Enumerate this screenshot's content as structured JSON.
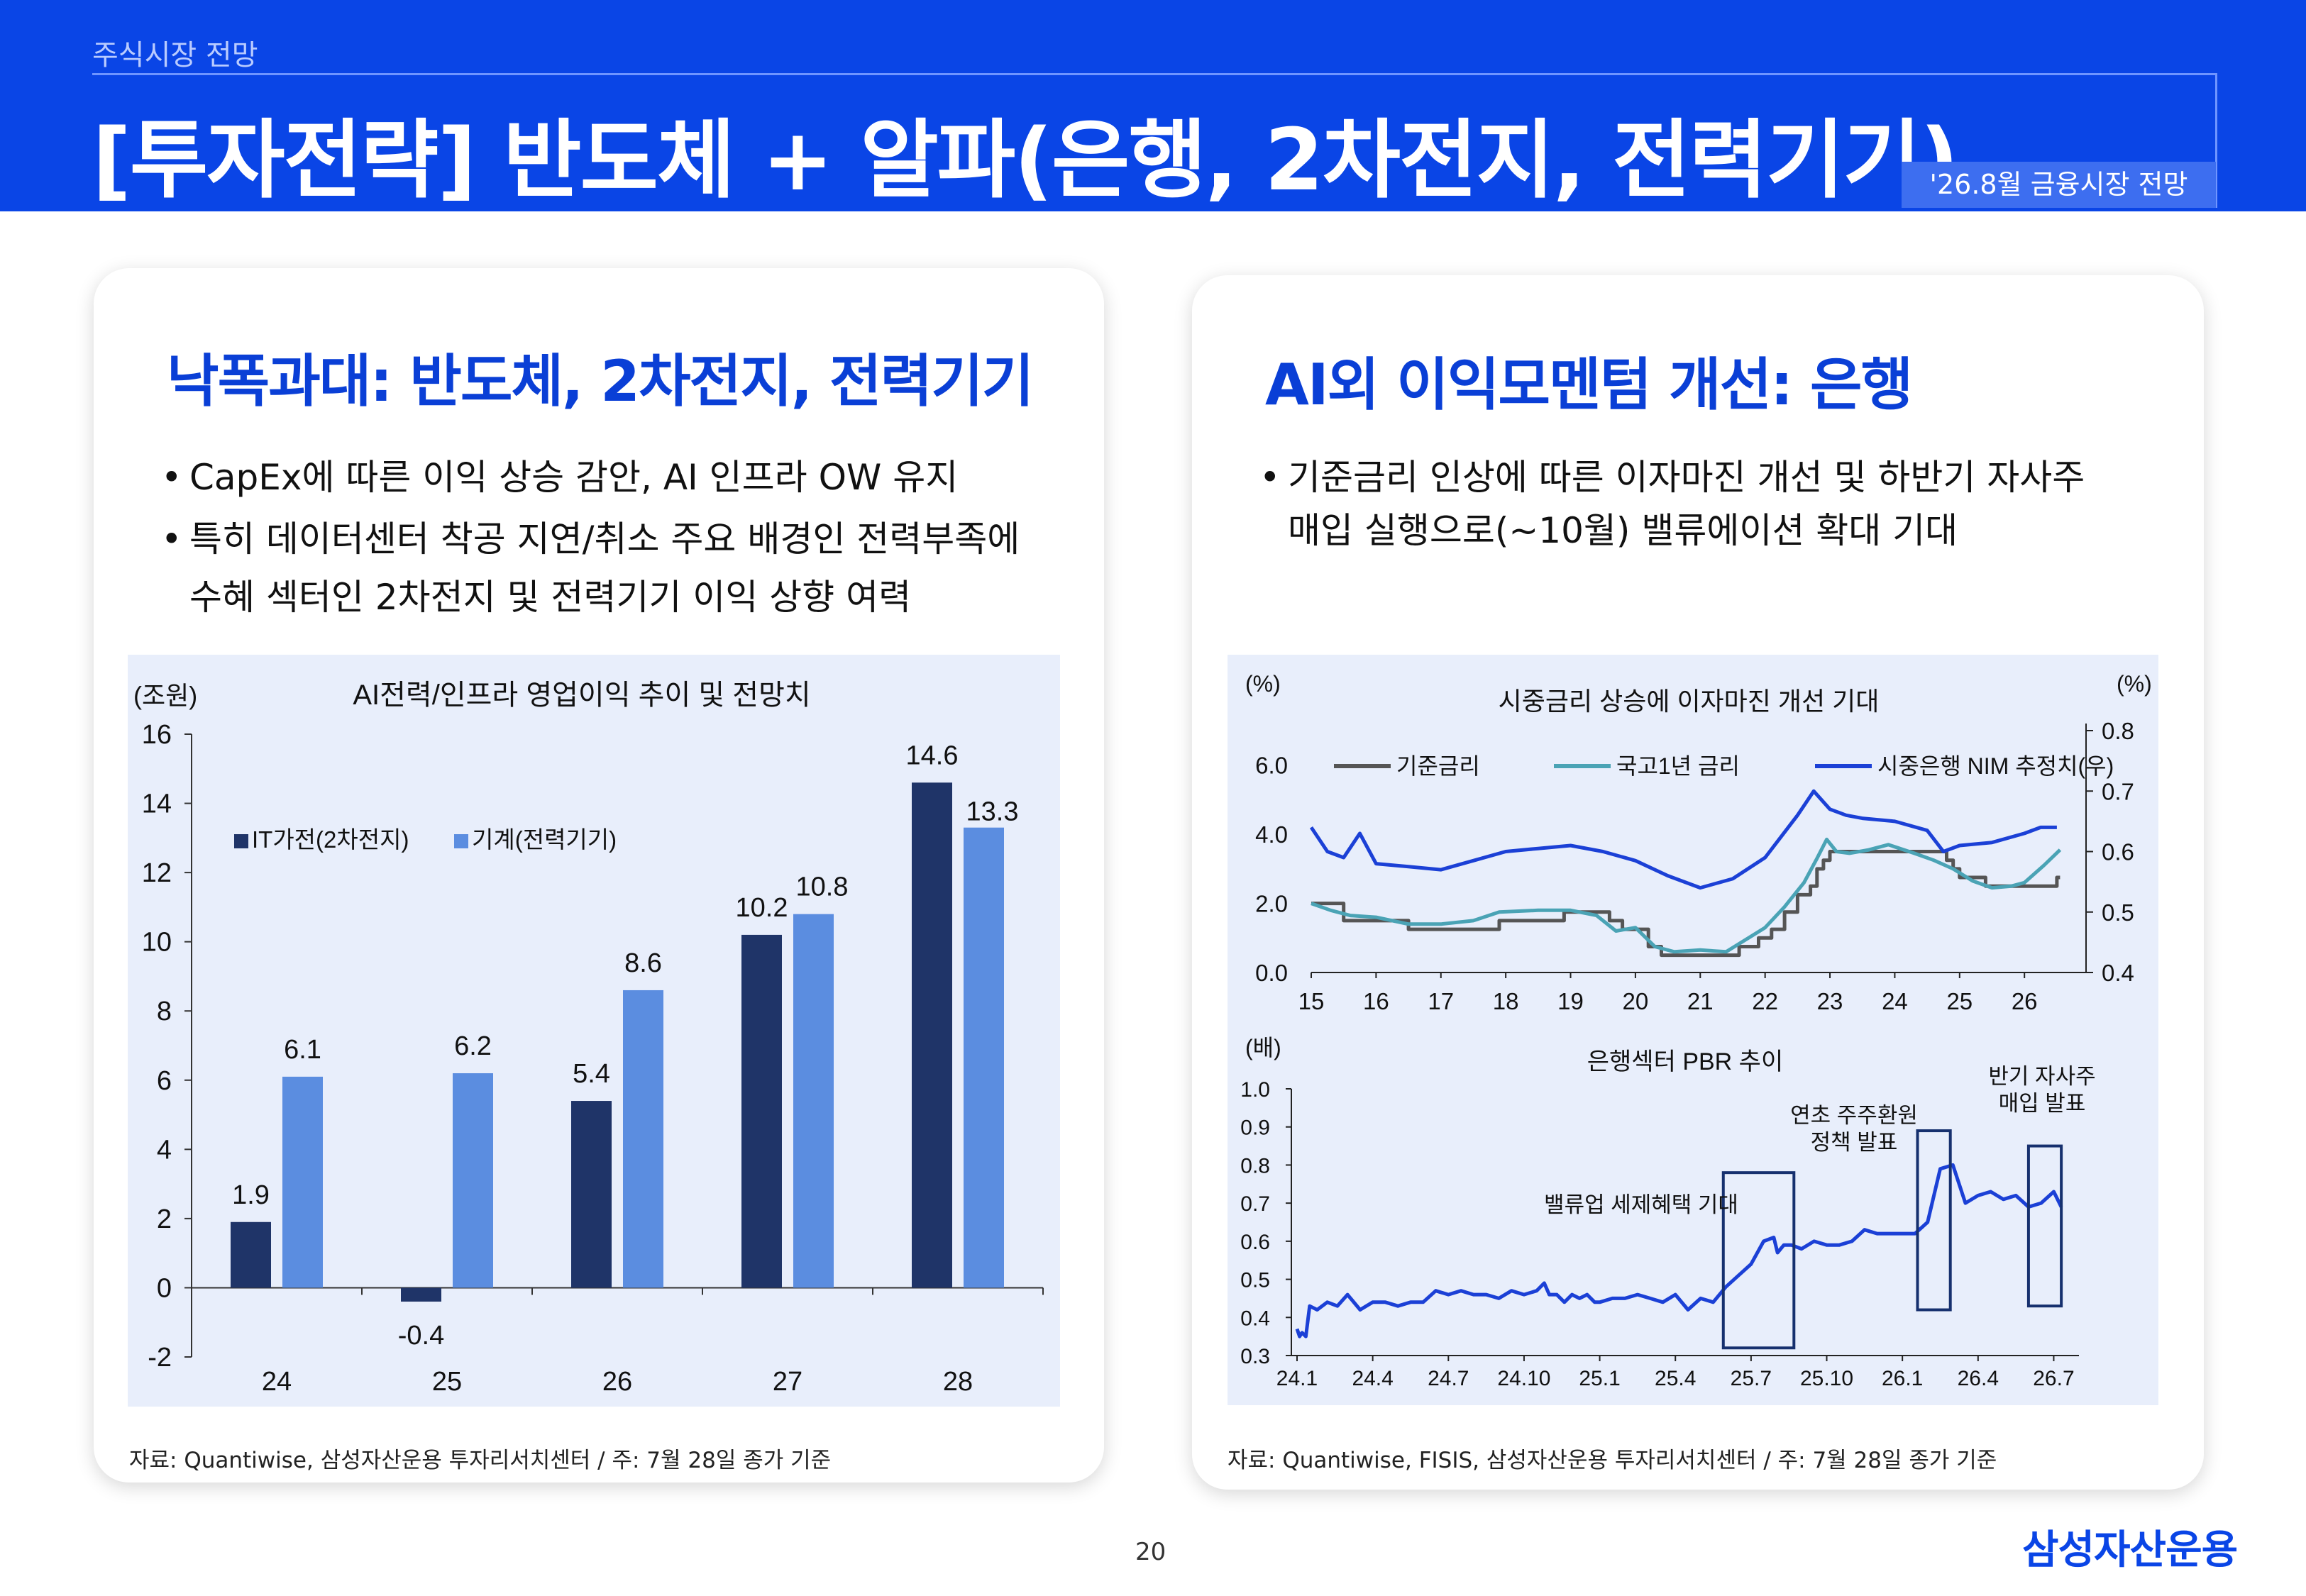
{
  "header": {
    "subtitle": "주식시장 전망",
    "title": "[투자전략] 반도체 + 알파(은행, 2차전지, 전력기기)",
    "badge": "'26.8월 금융시장 전망"
  },
  "left_panel": {
    "heading": "낙폭과대: 반도체, 2차전지, 전력기기",
    "bullets": [
      "CapEx에 따른 이익 상승 감안, AI 인프라 OW 유지",
      "특히 데이터센터 착공 지연/취소 주요 배경인 전력부족에",
      "수혜 섹터인 2차전지 및 전력기기 이익 상향 여력"
    ],
    "source": "자료: Quantiwise, 삼성자산운용 투자리서치센터 / 주: 7월 28일 종가 기준"
  },
  "right_panel": {
    "heading": "AI외 이익모멘텀 개선: 은행",
    "bullets": [
      "기준금리 인상에 따른 이자마진 개선 및 하반기 자사주",
      "매입 실행으로(~10월) 밸류에이션 확대 기대"
    ],
    "source": "자료: Quantiwise, FISIS, 삼성자산운용 투자리서치센터 /  주: 7월 28일  종가 기준"
  },
  "footer": {
    "page_number": "20",
    "brand": "삼성자산운용"
  },
  "colors": {
    "brand_blue": "#0a45e6",
    "navy_bar": "#1f3468",
    "light_bar": "#5b8de0",
    "gray_line": "#555555",
    "teal_line": "#4aa3b5",
    "blue_line": "#1b40d6"
  },
  "chart_data": [
    {
      "type": "bar",
      "title": "AI전력/인프라 영업이익 추이 및 전망치",
      "ylabel": "(조원)",
      "categories": [
        "24",
        "25",
        "26",
        "27",
        "28"
      ],
      "series": [
        {
          "name": "IT가전(2차전지)",
          "values": [
            1.9,
            -0.4,
            5.4,
            10.2,
            14.6
          ]
        },
        {
          "name": "기계(전력기기)",
          "values": [
            6.1,
            6.2,
            8.6,
            10.8,
            13.3
          ]
        }
      ],
      "ylim": [
        -2,
        16
      ],
      "yticks": [
        -2,
        0,
        2,
        4,
        6,
        8,
        10,
        12,
        14,
        16
      ],
      "legend": "top-left"
    },
    {
      "type": "line",
      "title": "시중금리 상승에 이자마진 개선 기대",
      "ylabel_left": "(%)",
      "ylabel_right": "(%)",
      "x_ticks": [
        "15",
        "16",
        "17",
        "18",
        "19",
        "20",
        "21",
        "22",
        "23",
        "24",
        "25",
        "26"
      ],
      "ylim_left": [
        0,
        7
      ],
      "yticks_left": [
        "0.0",
        "2.0",
        "4.0",
        "6.0"
      ],
      "ylim_right": [
        0.4,
        0.8
      ],
      "yticks_right": [
        "0.4",
        "0.5",
        "0.6",
        "0.7",
        "0.8"
      ],
      "legend": "top",
      "series": [
        {
          "name": "기준금리",
          "axis": "left",
          "x": [
            2015.0,
            2015.5,
            2016.5,
            2017.9,
            2018.9,
            2019.6,
            2019.8,
            2020.2,
            2020.4,
            2021.6,
            2021.9,
            2022.1,
            2022.3,
            2022.5,
            2022.7,
            2022.8,
            2022.9,
            2023.0,
            2024.8,
            2024.9,
            2025.0,
            2025.4,
            2026.5
          ],
          "y": [
            2.0,
            1.5,
            1.25,
            1.5,
            1.75,
            1.5,
            1.25,
            0.75,
            0.5,
            0.75,
            1.0,
            1.25,
            1.75,
            2.25,
            2.5,
            3.0,
            3.25,
            3.5,
            3.25,
            3.0,
            2.75,
            2.5,
            2.75
          ]
        },
        {
          "name": "국고1년 금리",
          "axis": "left",
          "x": [
            2015.0,
            2015.3,
            2015.6,
            2016.0,
            2016.5,
            2017.0,
            2017.5,
            2017.9,
            2018.5,
            2019.0,
            2019.4,
            2019.7,
            2020.0,
            2020.3,
            2020.6,
            2021.0,
            2021.4,
            2021.7,
            2022.0,
            2022.3,
            2022.6,
            2022.8,
            2022.95,
            2023.1,
            2023.3,
            2023.6,
            2023.9,
            2024.3,
            2024.6,
            2024.9,
            2025.2,
            2025.5,
            2025.8,
            2026.0,
            2026.3,
            2026.55
          ],
          "y": [
            2.0,
            1.8,
            1.65,
            1.6,
            1.4,
            1.4,
            1.5,
            1.75,
            1.8,
            1.8,
            1.65,
            1.2,
            1.3,
            0.75,
            0.6,
            0.65,
            0.6,
            0.95,
            1.3,
            1.9,
            2.6,
            3.3,
            3.85,
            3.5,
            3.45,
            3.55,
            3.7,
            3.45,
            3.25,
            3.0,
            2.65,
            2.45,
            2.5,
            2.6,
            3.1,
            3.55
          ]
        },
        {
          "name": "시중은행 NIM 추정치(우)",
          "axis": "right",
          "x": [
            2015.0,
            2015.25,
            2015.5,
            2015.75,
            2016.0,
            2016.5,
            2017.0,
            2017.5,
            2018.0,
            2018.5,
            2019.0,
            2019.5,
            2020.0,
            2020.5,
            2021.0,
            2021.5,
            2022.0,
            2022.5,
            2022.75,
            2023.0,
            2023.25,
            2023.5,
            2024.0,
            2024.5,
            2024.75,
            2025.0,
            2025.5,
            2026.0,
            2026.25,
            2026.5
          ],
          "y": [
            0.64,
            0.6,
            0.59,
            0.63,
            0.58,
            0.575,
            0.57,
            0.585,
            0.6,
            0.605,
            0.61,
            0.6,
            0.585,
            0.56,
            0.54,
            0.555,
            0.59,
            0.66,
            0.7,
            0.67,
            0.66,
            0.655,
            0.65,
            0.635,
            0.6,
            0.61,
            0.615,
            0.63,
            0.64,
            0.64
          ]
        }
      ]
    },
    {
      "type": "line",
      "title": "은행섹터 PBR 추이",
      "ylabel": "(배)",
      "x_ticks": [
        "24.1",
        "24.4",
        "24.7",
        "24.10",
        "25.1",
        "25.4",
        "25.7",
        "25.10",
        "26.1",
        "26.4",
        "26.7"
      ],
      "ylim": [
        0.3,
        1.0
      ],
      "yticks": [
        "0.3",
        "0.4",
        "0.5",
        "0.6",
        "0.7",
        "0.8",
        "0.9",
        "1.0"
      ],
      "series": [
        {
          "name": "",
          "x": [
            0,
            0.1,
            0.2,
            0.35,
            0.5,
            0.8,
            1.2,
            1.6,
            2.0,
            2.5,
            3.0,
            3.5,
            4.0,
            4.5,
            5.0,
            5.5,
            6.0,
            6.5,
            7.0,
            7.5,
            8.0,
            8.5,
            9.0,
            9.5,
            9.8,
            10.0,
            10.3,
            10.6,
            10.9,
            11.2,
            11.5,
            11.8,
            12.0,
            12.5,
            13.0,
            13.5,
            14.0,
            14.5,
            15.0,
            15.5,
            16.0,
            16.5,
            17.0,
            17.5,
            18.0,
            18.5,
            18.9,
            19.05,
            19.3,
            19.6,
            20.0,
            20.5,
            21.0,
            21.5,
            22.0,
            22.5,
            23.0,
            23.5,
            24.0,
            24.5,
            25.0,
            25.5,
            26.0,
            26.5,
            27.0,
            27.5,
            28.0,
            28.5,
            29.0,
            29.5,
            30.0,
            30.3
          ],
          "y": [
            0.37,
            0.35,
            0.36,
            0.35,
            0.43,
            0.42,
            0.44,
            0.43,
            0.46,
            0.42,
            0.44,
            0.44,
            0.43,
            0.44,
            0.44,
            0.47,
            0.46,
            0.47,
            0.46,
            0.46,
            0.45,
            0.47,
            0.46,
            0.47,
            0.49,
            0.46,
            0.46,
            0.44,
            0.46,
            0.45,
            0.46,
            0.44,
            0.44,
            0.45,
            0.45,
            0.46,
            0.45,
            0.44,
            0.46,
            0.42,
            0.45,
            0.44,
            0.48,
            0.51,
            0.54,
            0.6,
            0.61,
            0.57,
            0.59,
            0.59,
            0.58,
            0.6,
            0.59,
            0.59,
            0.6,
            0.63,
            0.62,
            0.62,
            0.62,
            0.62,
            0.65,
            0.79,
            0.8,
            0.7,
            0.72,
            0.73,
            0.71,
            0.72,
            0.69,
            0.7,
            0.73,
            0.69
          ]
        }
      ],
      "annotations": [
        "밸류업 세제혜택 기대",
        "연초 주주환원 정책 발표",
        "반기 자사주 매입 발표"
      ]
    }
  ]
}
